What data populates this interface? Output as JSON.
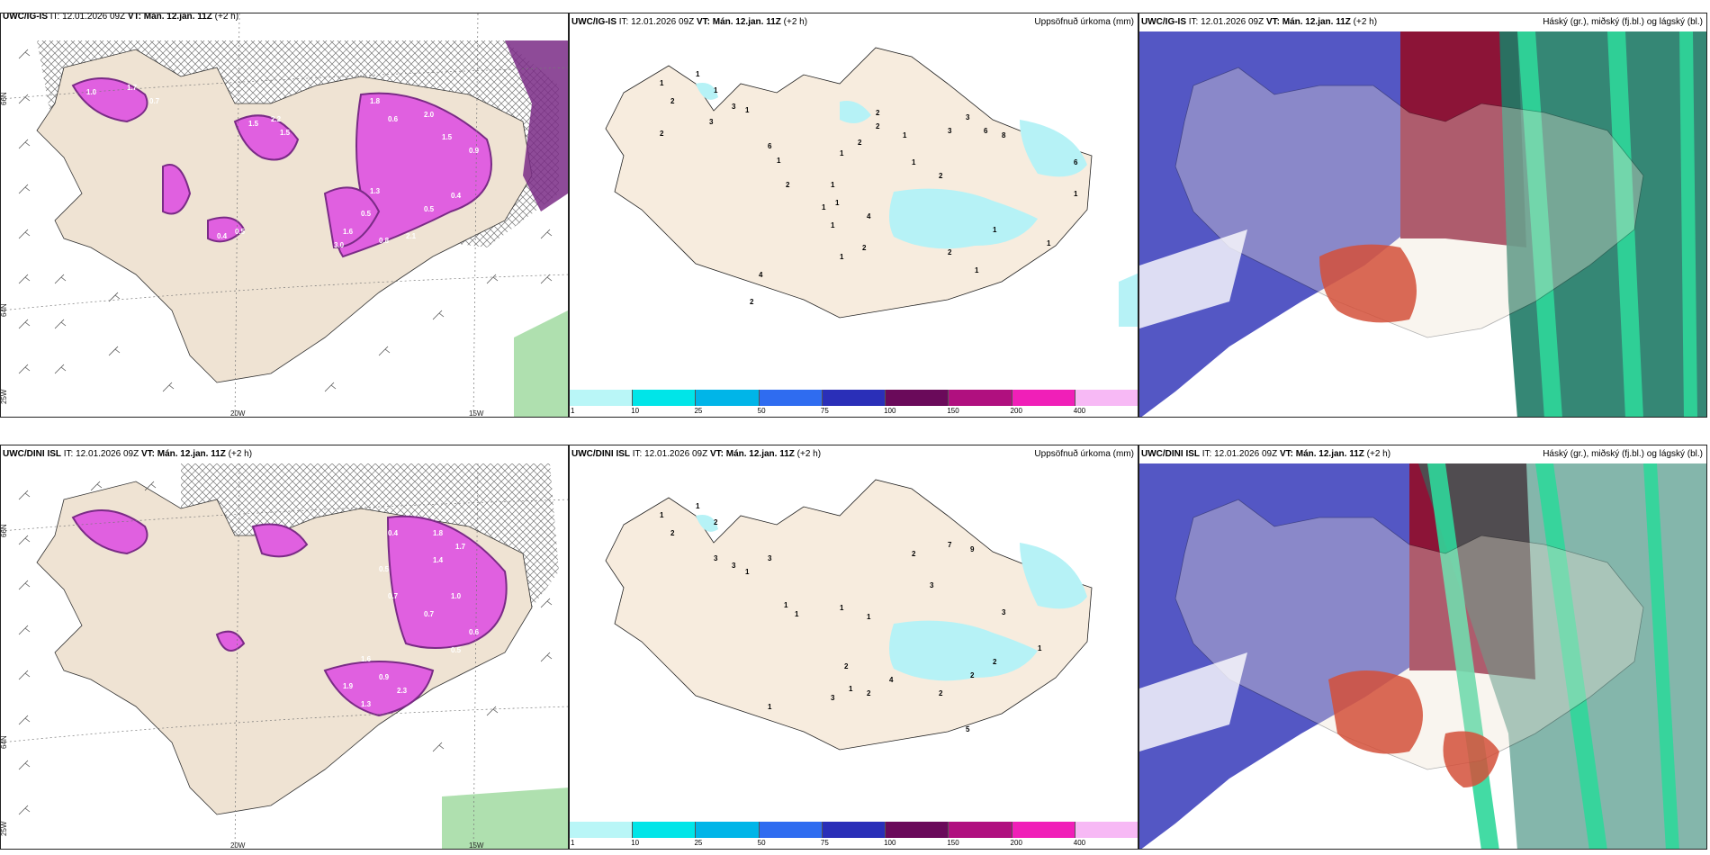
{
  "rows": [
    {
      "wind_panel": {
        "model": "UWC/IG-IS",
        "it": "IT: 12.01.2026 09Z",
        "vt": "VT: Mán. 12.jan. 11Z",
        "lead": "(+2 h)"
      },
      "precip_panel": {
        "model": "UWC/IG-IS",
        "it": "IT: 12.01.2026 09Z",
        "vt": "VT: Mán. 12.jan. 11Z",
        "lead": "(+2 h)",
        "right": "Uppsöfnuð úrkoma (mm)"
      },
      "cloud_panel": {
        "model": "UWC/IG-IS",
        "it": "IT: 12.01.2026 09Z",
        "vt": "VT: Mán. 12.jan. 11Z",
        "lead": "(+2 h)",
        "right": "Háský (gr.), miðský (fj.bl.) og lágský (bl.)"
      },
      "precip_values": [
        "1",
        "2",
        "1",
        "1",
        "2",
        "3",
        "3",
        "1",
        "6",
        "1",
        "2",
        "1",
        "1",
        "1",
        "2",
        "4",
        "2",
        "1",
        "1",
        "2",
        "2",
        "1",
        "1",
        "2",
        "3",
        "3",
        "6",
        "8",
        "6",
        "1",
        "1",
        "1",
        "1",
        "2",
        "4",
        "2",
        "1"
      ]
    },
    {
      "wind_panel": {
        "model": "UWC/DINI ISL",
        "it": "IT: 12.01.2026 09Z",
        "vt": "VT: Mán. 12.jan. 11Z",
        "lead": "(+2 h)"
      },
      "precip_panel": {
        "model": "UWC/DINI ISL",
        "it": "IT: 12.01.2026 09Z",
        "vt": "VT: Mán. 12.jan. 11Z",
        "lead": "(+2 h)",
        "right": "Uppsöfnuð úrkoma (mm)"
      },
      "cloud_panel": {
        "model": "UWC/DINI ISL",
        "it": "IT: 12.01.2026 09Z",
        "vt": "VT: Mán. 12.jan. 11Z",
        "lead": "(+2 h)",
        "right": "Háský (gr.), miðský (fj.bl.) og lágský (bl.)"
      },
      "precip_values": [
        "1",
        "2",
        "1",
        "2",
        "3",
        "3",
        "1",
        "3",
        "1",
        "1",
        "1",
        "1",
        "2",
        "3",
        "1",
        "4",
        "2",
        "1",
        "2",
        "3",
        "7",
        "9",
        "3",
        "2",
        "5",
        "2",
        "2",
        "1"
      ]
    }
  ],
  "map_labels": {
    "lat66": "66N",
    "lat64": "64N",
    "lon20": "20W",
    "lon15": "15W",
    "lon25": "25W"
  },
  "colorbar": {
    "ticks": [
      "1",
      "10",
      "25",
      "50",
      "75",
      "100",
      "150",
      "200",
      "400"
    ],
    "colors": [
      "#b9f6f7",
      "#00e5e8",
      "#00b5e8",
      "#2f6cf0",
      "#2a2fb8",
      "#6a0a5a",
      "#b0107f",
      "#f01fb8",
      "#f7b9f5"
    ]
  },
  "wind_values_row1": [
    "1.0",
    "1.7",
    "0.7",
    "1.5",
    "2.2",
    "1.5",
    "1.8",
    "0.6",
    "2.0",
    "1.5",
    "0.9",
    "1.3",
    "0.5",
    "1.6",
    "0.8",
    "3.0",
    "2.1",
    "0.4",
    "0.5",
    "0.5",
    "0.4"
  ],
  "wind_values_row2": [
    "1.8",
    "1.7",
    "0.4",
    "0.5",
    "0.7",
    "1.0",
    "1.4",
    "1.6",
    "0.9",
    "2.3",
    "1.9",
    "1.3",
    "0.6",
    "0.5",
    "0.7"
  ],
  "colors": {
    "land": "#efe3d3",
    "magenta": "#e060e0",
    "purple": "#7a2b86",
    "cyan": "#b6f2f6",
    "blue": "#5457c4",
    "dark_red": "#8c1437",
    "teal": "#1f7a66",
    "green": "#2fd79a"
  }
}
